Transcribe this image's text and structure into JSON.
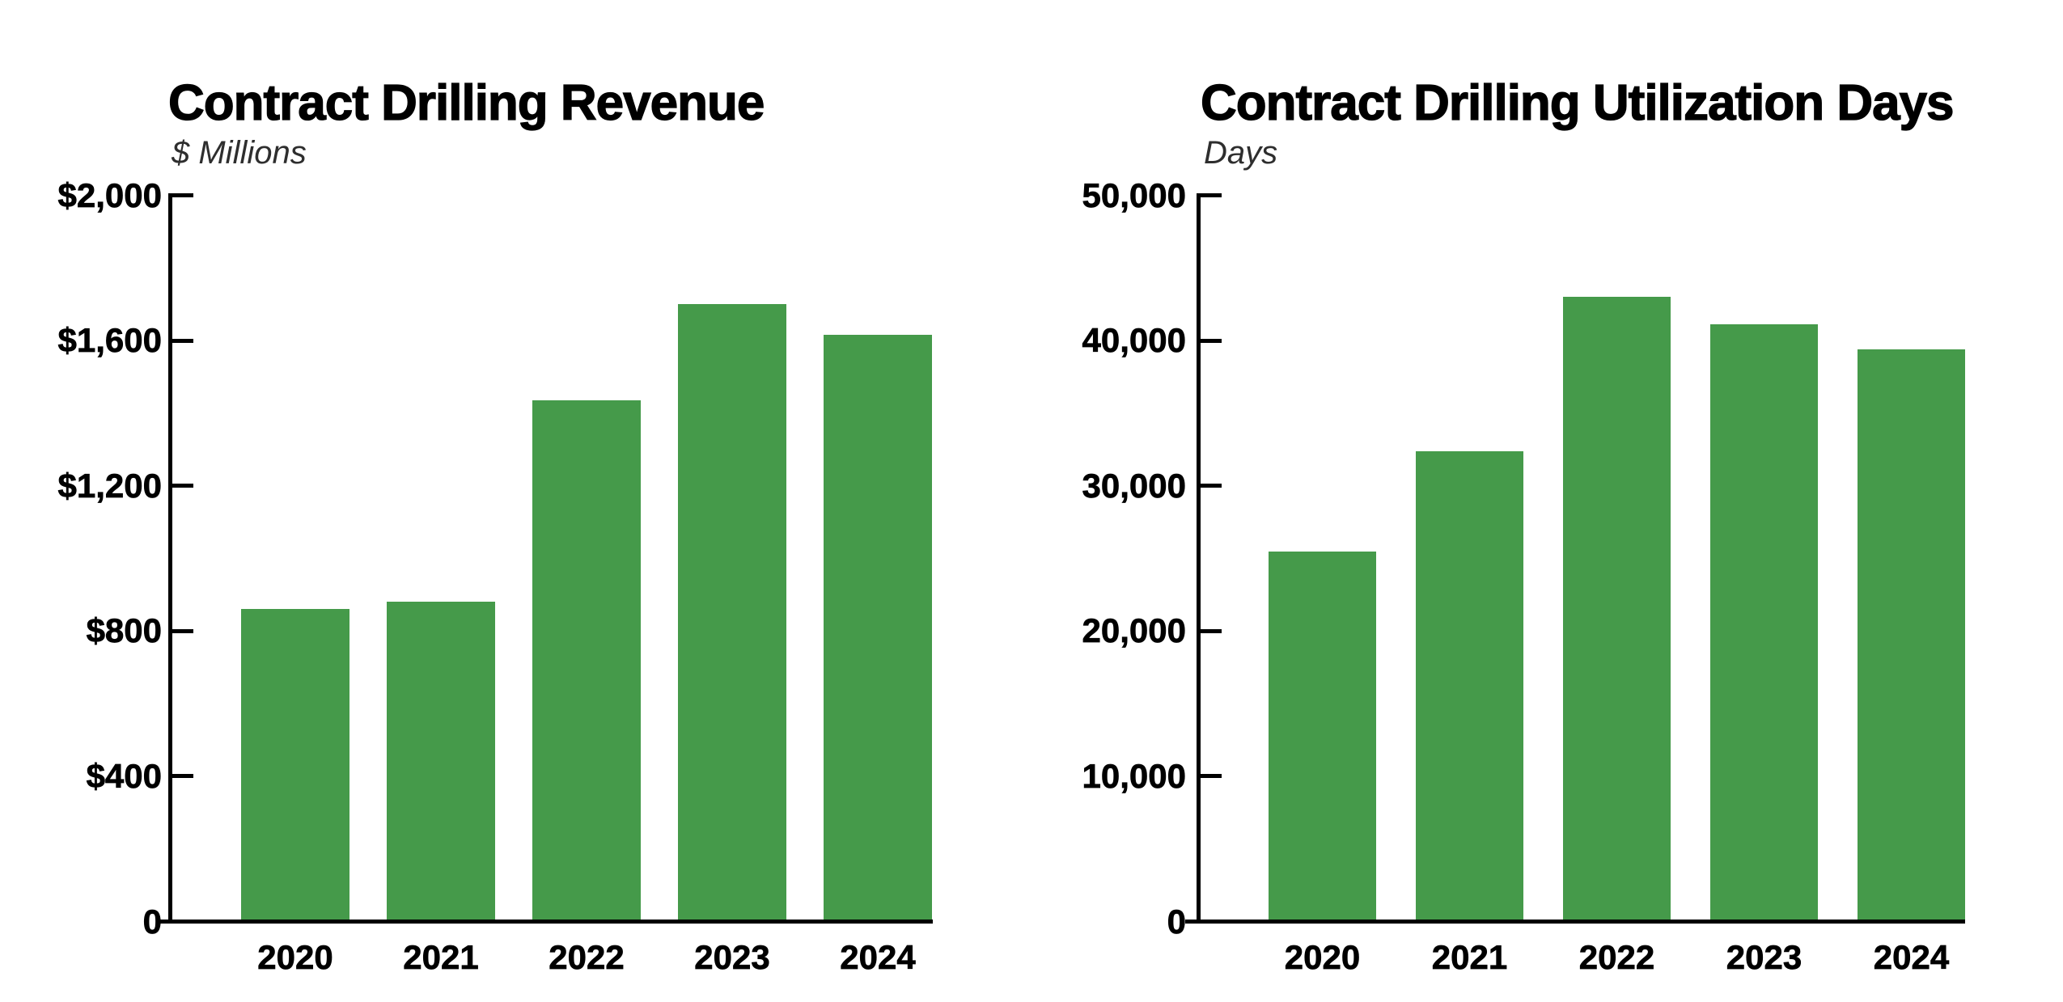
{
  "chart_data": [
    {
      "type": "bar",
      "title": "Contract Drilling Revenue",
      "subtitle": "$ Millions",
      "categories": [
        "2020",
        "2021",
        "2022",
        "2023",
        "2024"
      ],
      "values": [
        860,
        880,
        1435,
        1700,
        1615
      ],
      "xlabel": "",
      "ylabel": "$ Millions",
      "ylim": [
        0,
        2000
      ],
      "y_tick_step": 400,
      "y_tick_labels": [
        "$2,000",
        "$1,600",
        "$1,200",
        "$800",
        "$400",
        "0"
      ],
      "bar_color": "#459a4a",
      "axis_color": "#000000",
      "grid": false,
      "legend": "none"
    },
    {
      "type": "bar",
      "title": "Contract Drilling Utilization Days",
      "subtitle": "Days",
      "categories": [
        "2020",
        "2021",
        "2022",
        "2023",
        "2024"
      ],
      "values": [
        25500,
        32400,
        43000,
        41100,
        39400
      ],
      "xlabel": "",
      "ylabel": "Days",
      "ylim": [
        0,
        50000
      ],
      "y_tick_step": 10000,
      "y_tick_labels": [
        "50,000",
        "40,000",
        "30,000",
        "20,000",
        "10,000",
        "0"
      ],
      "bar_color": "#459a4a",
      "axis_color": "#000000",
      "grid": false,
      "legend": "none"
    }
  ]
}
